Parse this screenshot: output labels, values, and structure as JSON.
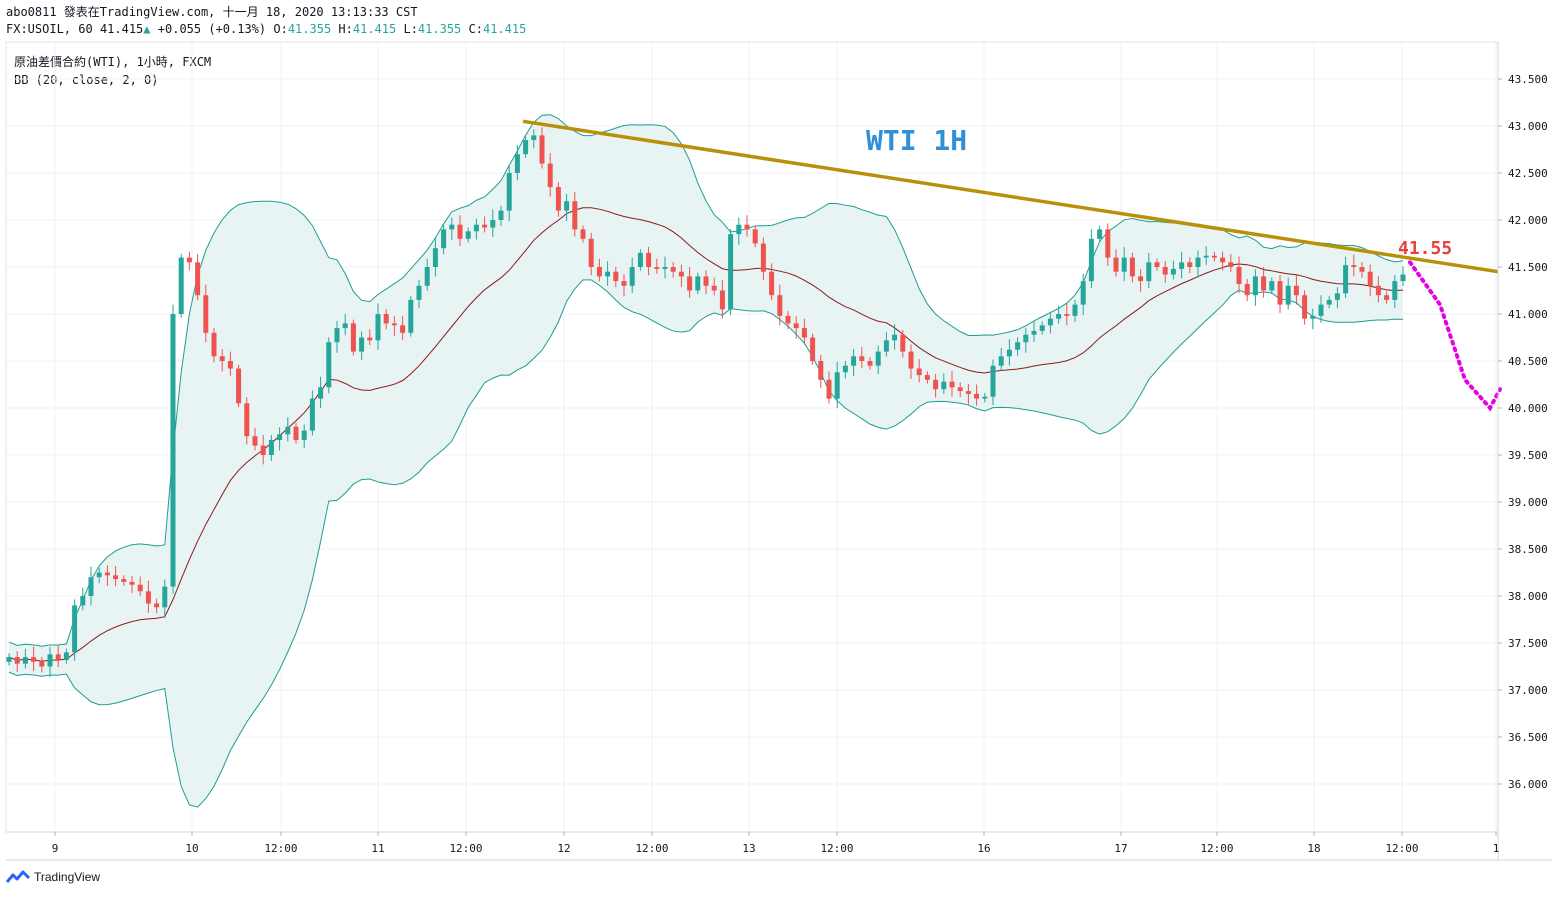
{
  "header": {
    "line1": "abo0811 發表在TradingView.com, 十一月 18, 2020 13:13:33 CST",
    "symbol": "FX:USOIL, 60",
    "last": "41.415",
    "change": "+0.055 (+0.13%)",
    "o_label": "O:",
    "o": "41.355",
    "h_label": "H:",
    "h": "41.415",
    "l_label": "L:",
    "l": "41.355",
    "c_label": "C:",
    "c": "41.415"
  },
  "legend": {
    "title": "原油差價合約(WTI), 1小時, FXCM",
    "indicator": "BB (20, close, 2, 0)"
  },
  "footer": {
    "brand": "TradingView"
  },
  "colors": {
    "up": "#26a69a",
    "down": "#ef5350",
    "basis": "#8b1a1a",
    "band": "#1e9e8f",
    "band_fill": "#e8f3f3",
    "trendline": "#b8900a",
    "projection": "#e600e6",
    "annotation_title": "#2f8fd8",
    "annotation_price": "#e8413b",
    "grid": "#eef0f3"
  },
  "chart_data": {
    "type": "candlestick",
    "title": "WTI 1H",
    "target_label": "41.55",
    "y_ticks": [
      "43.500",
      "43.000",
      "42.500",
      "42.000",
      "41.500",
      "41.000",
      "40.500",
      "40.000",
      "39.500",
      "39.000",
      "38.500",
      "38.000",
      "37.500",
      "37.000",
      "36.500",
      "36.000"
    ],
    "x_ticks": [
      "9",
      "10",
      "12:00",
      "11",
      "12:00",
      "12",
      "12:00",
      "13",
      "12:00",
      "16",
      "17",
      "12:00",
      "18",
      "12:00",
      "1"
    ],
    "ylim": [
      35.6,
      43.8
    ],
    "grid": true,
    "closes": [
      37.35,
      37.28,
      37.35,
      37.3,
      37.25,
      37.38,
      37.32,
      37.4,
      37.9,
      38.0,
      38.2,
      38.25,
      38.22,
      38.18,
      38.15,
      38.12,
      38.05,
      37.92,
      37.88,
      38.1,
      41.0,
      41.6,
      41.55,
      41.2,
      40.8,
      40.55,
      40.5,
      40.42,
      40.05,
      39.7,
      39.6,
      39.5,
      39.66,
      39.72,
      39.8,
      39.66,
      39.76,
      40.1,
      40.22,
      40.7,
      40.85,
      40.9,
      40.6,
      40.75,
      40.72,
      41.0,
      40.9,
      40.88,
      40.8,
      41.15,
      41.3,
      41.5,
      41.7,
      41.9,
      41.95,
      41.8,
      41.88,
      41.95,
      41.92,
      42.0,
      42.1,
      42.5,
      42.7,
      42.85,
      42.9,
      42.6,
      42.35,
      42.1,
      42.2,
      41.9,
      41.8,
      41.5,
      41.4,
      41.45,
      41.35,
      41.3,
      41.5,
      41.65,
      41.5,
      41.48,
      41.5,
      41.45,
      41.4,
      41.25,
      41.4,
      41.3,
      41.25,
      41.05,
      41.85,
      41.95,
      41.9,
      41.75,
      41.45,
      41.2,
      40.98,
      40.9,
      40.85,
      40.75,
      40.5,
      40.3,
      40.1,
      40.38,
      40.45,
      40.55,
      40.5,
      40.45,
      40.6,
      40.72,
      40.78,
      40.6,
      40.42,
      40.35,
      40.3,
      40.2,
      40.28,
      40.22,
      40.18,
      40.15,
      40.1,
      40.12,
      40.45,
      40.55,
      40.62,
      40.7,
      40.78,
      40.82,
      40.88,
      40.95,
      41.0,
      40.98,
      41.1,
      41.35,
      41.8,
      41.9,
      41.6,
      41.45,
      41.6,
      41.4,
      41.35,
      41.55,
      41.5,
      41.42,
      41.48,
      41.55,
      41.5,
      41.6,
      41.62,
      41.6,
      41.55,
      41.5,
      41.32,
      41.2,
      41.4,
      41.25,
      41.35,
      41.1,
      41.3,
      41.2,
      40.95,
      40.98,
      41.1,
      41.15,
      41.22,
      41.52,
      41.5,
      41.45,
      41.3,
      41.2,
      41.15,
      41.35,
      41.42
    ],
    "projection": [
      [
        41.55,
        0
      ],
      [
        41.1,
        0
      ],
      [
        40.3,
        0
      ],
      [
        40.0,
        0
      ],
      [
        40.2,
        0
      ]
    ],
    "trendline": [
      43.05,
      41.45
    ]
  }
}
